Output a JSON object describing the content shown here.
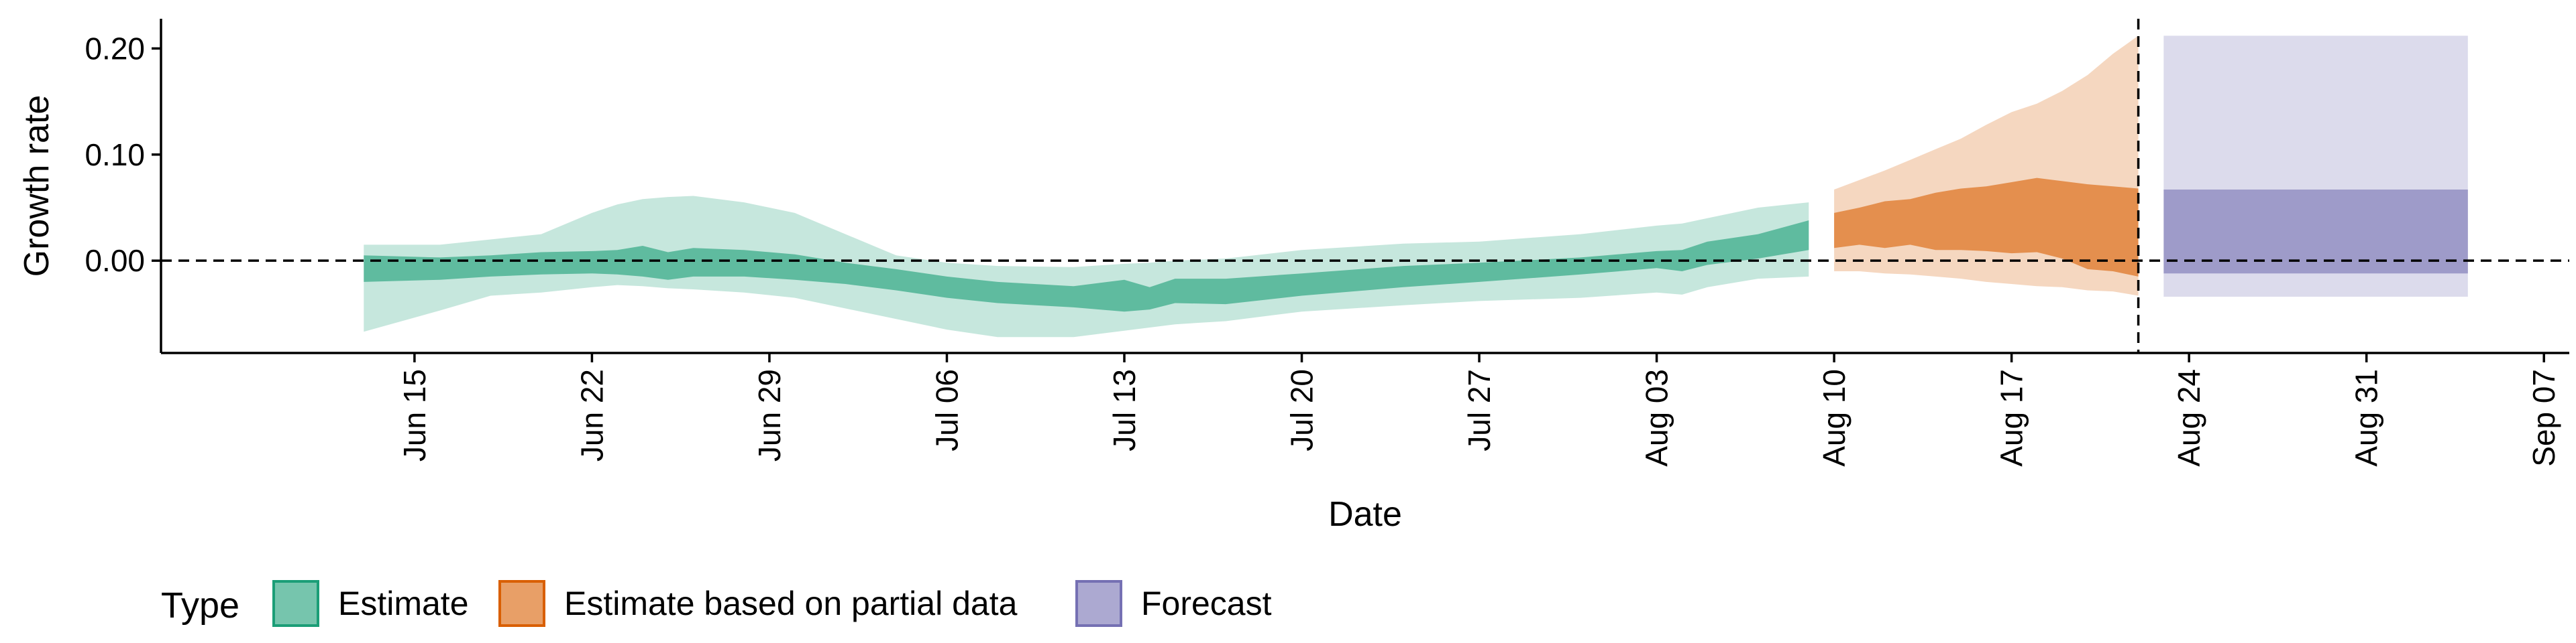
{
  "chart_data": {
    "type": "area",
    "xlabel": "Date",
    "ylabel": "Growth rate",
    "xlim": [
      "2020-06-05",
      "2020-09-08"
    ],
    "ylim": [
      -0.087,
      0.228
    ],
    "x_ticks": [
      {
        "date": "2020-06-15",
        "label": "Jun 15"
      },
      {
        "date": "2020-06-22",
        "label": "Jun 22"
      },
      {
        "date": "2020-06-29",
        "label": "Jun 29"
      },
      {
        "date": "2020-07-06",
        "label": "Jul 06"
      },
      {
        "date": "2020-07-13",
        "label": "Jul 13"
      },
      {
        "date": "2020-07-20",
        "label": "Jul 20"
      },
      {
        "date": "2020-07-27",
        "label": "Jul 27"
      },
      {
        "date": "2020-08-03",
        "label": "Aug 03"
      },
      {
        "date": "2020-08-10",
        "label": "Aug 10"
      },
      {
        "date": "2020-08-17",
        "label": "Aug 17"
      },
      {
        "date": "2020-08-24",
        "label": "Aug 24"
      },
      {
        "date": "2020-08-31",
        "label": "Aug 31"
      },
      {
        "date": "2020-09-07",
        "label": "Sep 07"
      }
    ],
    "y_ticks": [
      {
        "value": 0.0,
        "label": "0.00"
      },
      {
        "value": 0.1,
        "label": "0.10"
      },
      {
        "value": 0.2,
        "label": "0.20"
      }
    ],
    "reference_lines": [
      {
        "orientation": "horizontal",
        "y": 0.0,
        "style": "dashed"
      },
      {
        "orientation": "vertical",
        "x": "2020-08-22",
        "style": "dashed"
      }
    ],
    "legend": {
      "position": "bottom-left",
      "title": "Type",
      "entries": [
        {
          "label": "Estimate",
          "color": "#1b9e77"
        },
        {
          "label": "Estimate based on partial data",
          "color": "#d95f02"
        },
        {
          "label": "Forecast",
          "color": "#7570b3"
        }
      ]
    },
    "series": [
      {
        "name": "Estimate",
        "color": "#1b9e77",
        "step": false,
        "points": [
          {
            "x": "2020-06-13",
            "lo90": -0.067,
            "lo50": -0.02,
            "hi50": 0.005,
            "hi90": 0.015
          },
          {
            "x": "2020-06-16",
            "lo90": -0.047,
            "lo50": -0.018,
            "hi50": 0.003,
            "hi90": 0.015
          },
          {
            "x": "2020-06-18",
            "lo90": -0.033,
            "lo50": -0.015,
            "hi50": 0.005,
            "hi90": 0.02
          },
          {
            "x": "2020-06-20",
            "lo90": -0.03,
            "lo50": -0.013,
            "hi50": 0.008,
            "hi90": 0.025
          },
          {
            "x": "2020-06-22",
            "lo90": -0.025,
            "lo50": -0.012,
            "hi50": 0.009,
            "hi90": 0.045
          },
          {
            "x": "2020-06-23",
            "lo90": -0.023,
            "lo50": -0.013,
            "hi50": 0.01,
            "hi90": 0.053
          },
          {
            "x": "2020-06-24",
            "lo90": -0.024,
            "lo50": -0.015,
            "hi50": 0.014,
            "hi90": 0.058
          },
          {
            "x": "2020-06-25",
            "lo90": -0.026,
            "lo50": -0.018,
            "hi50": 0.008,
            "hi90": 0.06
          },
          {
            "x": "2020-06-26",
            "lo90": -0.027,
            "lo50": -0.015,
            "hi50": 0.012,
            "hi90": 0.061
          },
          {
            "x": "2020-06-28",
            "lo90": -0.03,
            "lo50": -0.015,
            "hi50": 0.01,
            "hi90": 0.055
          },
          {
            "x": "2020-06-30",
            "lo90": -0.035,
            "lo50": -0.018,
            "hi50": 0.006,
            "hi90": 0.045
          },
          {
            "x": "2020-07-02",
            "lo90": -0.045,
            "lo50": -0.022,
            "hi50": -0.002,
            "hi90": 0.025
          },
          {
            "x": "2020-07-04",
            "lo90": -0.055,
            "lo50": -0.028,
            "hi50": -0.008,
            "hi90": 0.005
          },
          {
            "x": "2020-07-06",
            "lo90": -0.065,
            "lo50": -0.035,
            "hi50": -0.015,
            "hi90": -0.002
          },
          {
            "x": "2020-07-08",
            "lo90": -0.072,
            "lo50": -0.04,
            "hi50": -0.02,
            "hi90": -0.005
          },
          {
            "x": "2020-07-11",
            "lo90": -0.072,
            "lo50": -0.044,
            "hi50": -0.024,
            "hi90": -0.006
          },
          {
            "x": "2020-07-13",
            "lo90": -0.066,
            "lo50": -0.048,
            "hi50": -0.018,
            "hi90": -0.003
          },
          {
            "x": "2020-07-14",
            "lo90": -0.063,
            "lo50": -0.046,
            "hi50": -0.025,
            "hi90": -0.002
          },
          {
            "x": "2020-07-15",
            "lo90": -0.06,
            "lo50": -0.04,
            "hi50": -0.017,
            "hi90": 0.0
          },
          {
            "x": "2020-07-17",
            "lo90": -0.057,
            "lo50": -0.041,
            "hi50": -0.017,
            "hi90": 0.002
          },
          {
            "x": "2020-07-20",
            "lo90": -0.048,
            "lo50": -0.033,
            "hi50": -0.012,
            "hi90": 0.01
          },
          {
            "x": "2020-07-24",
            "lo90": -0.042,
            "lo50": -0.025,
            "hi50": -0.005,
            "hi90": 0.016
          },
          {
            "x": "2020-07-27",
            "lo90": -0.038,
            "lo50": -0.02,
            "hi50": -0.002,
            "hi90": 0.018
          },
          {
            "x": "2020-07-31",
            "lo90": -0.035,
            "lo50": -0.013,
            "hi50": 0.003,
            "hi90": 0.025
          },
          {
            "x": "2020-08-03",
            "lo90": -0.03,
            "lo50": -0.007,
            "hi50": 0.009,
            "hi90": 0.033
          },
          {
            "x": "2020-08-04",
            "lo90": -0.032,
            "lo50": -0.01,
            "hi50": 0.01,
            "hi90": 0.035
          },
          {
            "x": "2020-08-05",
            "lo90": -0.025,
            "lo50": -0.004,
            "hi50": 0.018,
            "hi90": 0.04
          },
          {
            "x": "2020-08-07",
            "lo90": -0.017,
            "lo50": 0.002,
            "hi50": 0.025,
            "hi90": 0.05
          },
          {
            "x": "2020-08-09",
            "lo90": -0.015,
            "lo50": 0.01,
            "hi50": 0.038,
            "hi90": 0.055
          }
        ]
      },
      {
        "name": "Estimate based on partial data",
        "color": "#d95f02",
        "step": false,
        "points": [
          {
            "x": "2020-08-10",
            "lo90": -0.01,
            "lo50": 0.012,
            "hi50": 0.045,
            "hi90": 0.067
          },
          {
            "x": "2020-08-11",
            "lo90": -0.01,
            "lo50": 0.015,
            "hi50": 0.05,
            "hi90": 0.076
          },
          {
            "x": "2020-08-12",
            "lo90": -0.012,
            "lo50": 0.012,
            "hi50": 0.056,
            "hi90": 0.085
          },
          {
            "x": "2020-08-13",
            "lo90": -0.013,
            "lo50": 0.015,
            "hi50": 0.058,
            "hi90": 0.095
          },
          {
            "x": "2020-08-14",
            "lo90": -0.015,
            "lo50": 0.01,
            "hi50": 0.064,
            "hi90": 0.105
          },
          {
            "x": "2020-08-15",
            "lo90": -0.017,
            "lo50": 0.01,
            "hi50": 0.068,
            "hi90": 0.115
          },
          {
            "x": "2020-08-16",
            "lo90": -0.02,
            "lo50": 0.009,
            "hi50": 0.07,
            "hi90": 0.128
          },
          {
            "x": "2020-08-17",
            "lo90": -0.022,
            "lo50": 0.007,
            "hi50": 0.074,
            "hi90": 0.14
          },
          {
            "x": "2020-08-18",
            "lo90": -0.024,
            "lo50": 0.008,
            "hi50": 0.078,
            "hi90": 0.148
          },
          {
            "x": "2020-08-19",
            "lo90": -0.025,
            "lo50": 0.002,
            "hi50": 0.075,
            "hi90": 0.16
          },
          {
            "x": "2020-08-20",
            "lo90": -0.028,
            "lo50": -0.008,
            "hi50": 0.072,
            "hi90": 0.175
          },
          {
            "x": "2020-08-21",
            "lo90": -0.029,
            "lo50": -0.01,
            "hi50": 0.07,
            "hi90": 0.195
          },
          {
            "x": "2020-08-22",
            "lo90": -0.033,
            "lo50": -0.015,
            "hi50": 0.068,
            "hi90": 0.212
          }
        ]
      },
      {
        "name": "Forecast",
        "color": "#7570b3",
        "step": true,
        "points": [
          {
            "x": "2020-08-23",
            "lo90": -0.034,
            "lo50": -0.012,
            "hi50": 0.067,
            "hi90": 0.212
          },
          {
            "x": "2020-09-04",
            "lo90": -0.034,
            "lo50": -0.012,
            "hi50": 0.067,
            "hi90": 0.212
          }
        ]
      }
    ]
  }
}
